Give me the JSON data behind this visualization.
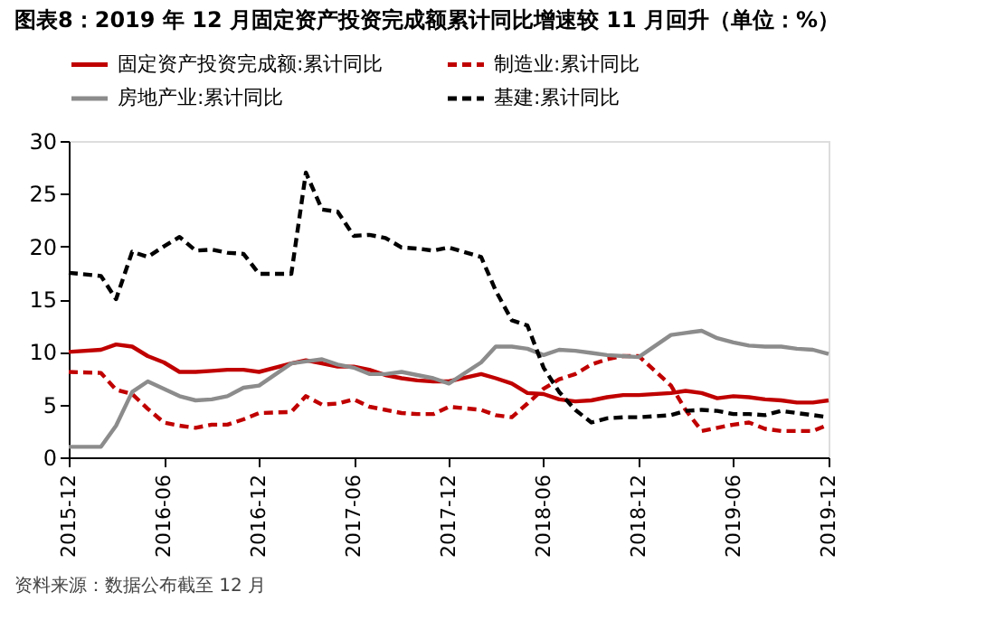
{
  "chart_data": {
    "type": "line",
    "title": "图表8：2019 年 12 月固定资产投资完成额累计同比增速较 11 月回升（单位：%）",
    "annotations": [
      "资料来源：数据公布截至 12 月"
    ],
    "x": [
      "2015-12",
      "2016-02",
      "2016-03",
      "2016-04",
      "2016-05",
      "2016-06",
      "2016-07",
      "2016-08",
      "2016-09",
      "2016-10",
      "2016-11",
      "2016-12",
      "2017-02",
      "2017-03",
      "2017-04",
      "2017-05",
      "2017-06",
      "2017-07",
      "2017-08",
      "2017-09",
      "2017-10",
      "2017-11",
      "2017-12",
      "2018-02",
      "2018-03",
      "2018-04",
      "2018-05",
      "2018-06",
      "2018-07",
      "2018-08",
      "2018-09",
      "2018-10",
      "2018-11",
      "2018-12",
      "2019-02",
      "2019-03",
      "2019-04",
      "2019-05",
      "2019-06",
      "2019-07",
      "2019-08",
      "2019-09",
      "2019-10",
      "2019-11",
      "2019-12"
    ],
    "series": [
      {
        "name": "固定资产投资完成额:累计同比",
        "color": "#c00000",
        "line_style": "solid",
        "values": [
          10.0,
          10.2,
          10.7,
          10.5,
          9.6,
          9.0,
          8.1,
          8.1,
          8.2,
          8.3,
          8.3,
          8.1,
          8.9,
          9.2,
          8.9,
          8.6,
          8.6,
          8.3,
          7.8,
          7.5,
          7.3,
          7.2,
          7.2,
          7.9,
          7.5,
          7.0,
          6.1,
          6.0,
          5.5,
          5.3,
          5.4,
          5.7,
          5.9,
          5.9,
          6.1,
          6.3,
          6.1,
          5.6,
          5.8,
          5.7,
          5.5,
          5.4,
          5.2,
          5.2,
          5.4
        ]
      },
      {
        "name": "制造业:累计同比",
        "color": "#c00000",
        "line_style": "dashed",
        "values": [
          8.1,
          8.0,
          6.4,
          6.0,
          4.6,
          3.3,
          3.0,
          2.8,
          3.1,
          3.1,
          3.6,
          4.2,
          4.3,
          5.8,
          5.0,
          5.1,
          5.5,
          4.8,
          4.5,
          4.2,
          4.1,
          4.1,
          4.8,
          4.5,
          4.0,
          3.8,
          5.1,
          6.5,
          7.4,
          7.9,
          8.8,
          9.3,
          9.6,
          9.6,
          6.8,
          4.5,
          2.5,
          2.8,
          3.1,
          3.3,
          2.7,
          2.5,
          2.5,
          2.5,
          3.1
        ]
      },
      {
        "name": "房地产业:累计同比",
        "color": "#8c8c8c",
        "line_style": "solid",
        "values": [
          1.0,
          1.0,
          3.0,
          6.2,
          7.2,
          6.5,
          5.8,
          5.4,
          5.5,
          5.8,
          6.6,
          6.8,
          8.9,
          9.1,
          9.3,
          8.8,
          8.5,
          7.9,
          7.9,
          8.1,
          7.8,
          7.5,
          7.0,
          9.0,
          10.5,
          10.5,
          10.3,
          9.7,
          10.2,
          10.1,
          9.9,
          9.7,
          9.6,
          9.5,
          11.6,
          11.8,
          12.0,
          11.3,
          10.9,
          10.6,
          10.5,
          10.5,
          10.3,
          10.2,
          9.8
        ]
      },
      {
        "name": "基建:累计同比",
        "color": "#000000",
        "line_style": "dashed",
        "values": [
          17.5,
          17.2,
          15.0,
          19.5,
          19.0,
          20.0,
          20.9,
          19.6,
          19.7,
          19.4,
          19.3,
          17.4,
          17.4,
          27.0,
          23.5,
          23.3,
          21.0,
          21.1,
          20.8,
          19.9,
          19.8,
          19.6,
          19.9,
          19.0,
          15.8,
          13.0,
          12.5,
          8.5,
          6.2,
          4.5,
          3.3,
          3.7,
          3.8,
          3.8,
          4.0,
          4.4,
          4.5,
          4.4,
          4.1,
          4.1,
          4.0,
          4.4,
          4.2,
          4.0,
          3.8
        ]
      }
    ],
    "xlim": [
      "2015-12",
      "2019-12"
    ],
    "xticks": [
      {
        "value": "2015-12",
        "label": "2015-12"
      },
      {
        "value": "2016-06",
        "label": "2016-06"
      },
      {
        "value": "2016-12",
        "label": "2016-12"
      },
      {
        "value": "2017-06",
        "label": "2017-06"
      },
      {
        "value": "2017-12",
        "label": "2017-12"
      },
      {
        "value": "2018-06",
        "label": "2018-06"
      },
      {
        "value": "2018-12",
        "label": "2018-12"
      },
      {
        "value": "2019-06",
        "label": "2019-06"
      },
      {
        "value": "2019-12",
        "label": "2019-12"
      }
    ],
    "ylim": [
      0,
      30
    ],
    "yticks": [
      0,
      5,
      10,
      15,
      20,
      25,
      30
    ],
    "grid": false,
    "legend": "top",
    "marker": "none"
  }
}
